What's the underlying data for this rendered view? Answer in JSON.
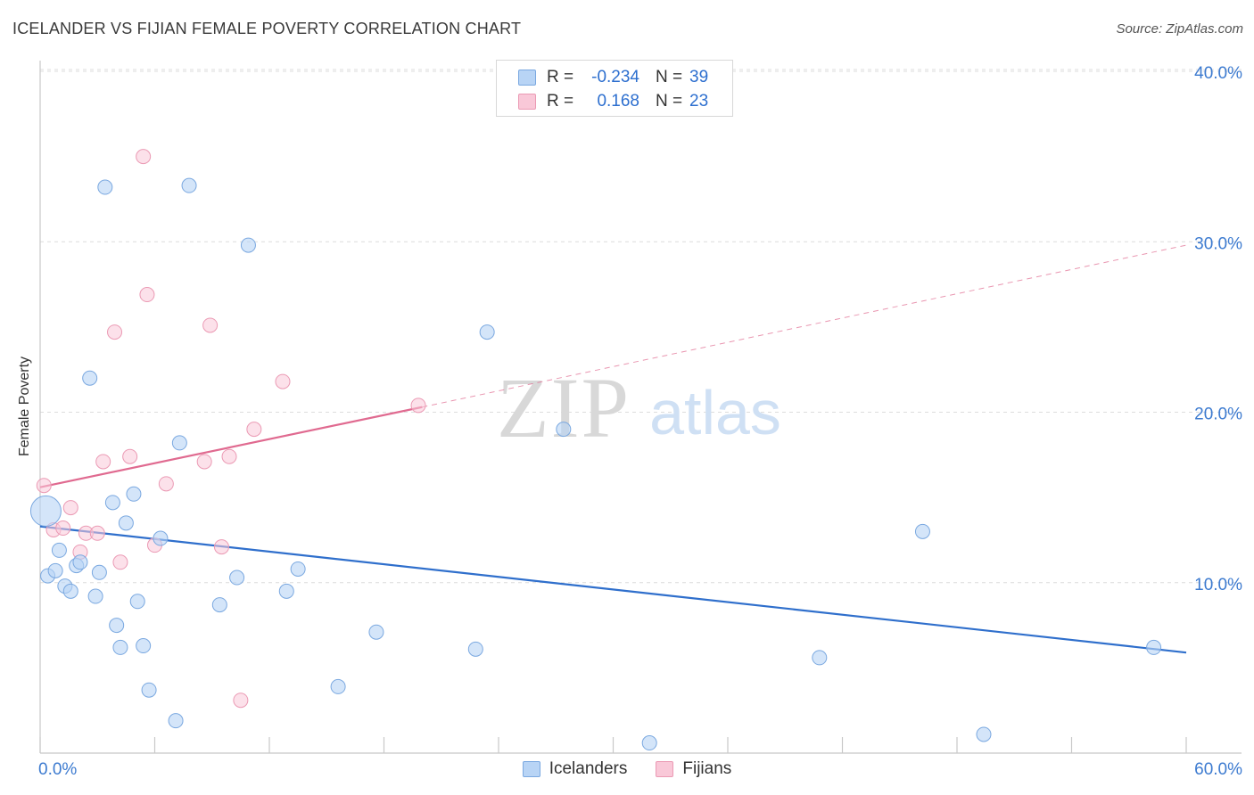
{
  "header": {
    "title": "ICELANDER VS FIJIAN FEMALE POVERTY CORRELATION CHART",
    "source": "Source: ZipAtlas.com"
  },
  "watermark": {
    "zip": "ZIP",
    "atlas": "atlas"
  },
  "legend": {
    "rows": [
      {
        "r_label": "R =",
        "r_value": "-0.234",
        "n_label": "N =",
        "n_value": "39"
      },
      {
        "r_label": "R =",
        "r_value": "0.168",
        "n_label": "N =",
        "n_value": "23"
      }
    ],
    "bottom": [
      "Icelanders",
      "Fijians"
    ]
  },
  "colors": {
    "blue_fill": "#b8d4f5",
    "blue_stroke": "#7aa8e0",
    "blue_line": "#2f6fcc",
    "pink_fill": "#f9c8d8",
    "pink_stroke": "#eb9ab4",
    "pink_line": "#e06a90",
    "tick_text": "#3d7bd0"
  },
  "chart_data": {
    "type": "scatter",
    "title": "ICELANDER VS FIJIAN FEMALE POVERTY CORRELATION CHART",
    "xlabel": "",
    "ylabel": "Female Poverty",
    "xlim": [
      0,
      60
    ],
    "ylim": [
      0,
      40
    ],
    "x_tick_labels": [
      "0.0%",
      "60.0%"
    ],
    "y_ticks": [
      10,
      20,
      30,
      40
    ],
    "y_tick_labels": [
      "10.0%",
      "20.0%",
      "30.0%",
      "40.0%"
    ],
    "series": [
      {
        "name": "Icelanders",
        "R": -0.234,
        "N": 39,
        "trend": {
          "x0": 0,
          "y0": 13.3,
          "x1": 60,
          "y1": 5.9,
          "dashed_until": null
        },
        "points": [
          [
            0.3,
            14.2,
            "big"
          ],
          [
            0.4,
            10.4
          ],
          [
            0.8,
            10.7
          ],
          [
            1.0,
            11.9
          ],
          [
            1.3,
            9.8
          ],
          [
            1.6,
            9.5
          ],
          [
            1.9,
            11.0
          ],
          [
            2.1,
            11.2
          ],
          [
            2.6,
            22.0
          ],
          [
            2.9,
            9.2
          ],
          [
            3.1,
            10.6
          ],
          [
            3.4,
            33.2
          ],
          [
            3.8,
            14.7
          ],
          [
            4.0,
            7.5
          ],
          [
            4.2,
            6.2
          ],
          [
            4.5,
            13.5
          ],
          [
            4.9,
            15.2
          ],
          [
            5.1,
            8.9
          ],
          [
            5.4,
            6.3
          ],
          [
            5.7,
            3.7
          ],
          [
            6.3,
            12.6
          ],
          [
            7.1,
            1.9
          ],
          [
            7.3,
            18.2
          ],
          [
            7.8,
            33.3
          ],
          [
            9.4,
            8.7
          ],
          [
            10.3,
            10.3
          ],
          [
            10.9,
            29.8
          ],
          [
            12.9,
            9.5
          ],
          [
            13.5,
            10.8
          ],
          [
            15.6,
            3.9
          ],
          [
            17.6,
            7.1
          ],
          [
            22.8,
            6.1
          ],
          [
            23.4,
            24.7
          ],
          [
            27.4,
            19.0
          ],
          [
            31.9,
            0.6
          ],
          [
            40.8,
            5.6
          ],
          [
            46.2,
            13.0
          ],
          [
            49.4,
            1.1
          ],
          [
            58.3,
            6.2
          ]
        ]
      },
      {
        "name": "Fijians",
        "R": 0.168,
        "N": 23,
        "trend": {
          "x0": 0,
          "y0": 15.6,
          "x1": 20,
          "y1": 20.3,
          "dashed_to_x": 60,
          "dashed_to_y": 29.8
        },
        "points": [
          [
            0.2,
            15.7
          ],
          [
            0.7,
            13.1
          ],
          [
            1.2,
            13.2
          ],
          [
            1.6,
            14.4
          ],
          [
            2.1,
            11.8
          ],
          [
            2.4,
            12.9
          ],
          [
            3.0,
            12.9
          ],
          [
            3.3,
            17.1
          ],
          [
            3.9,
            24.7
          ],
          [
            4.2,
            11.2
          ],
          [
            4.7,
            17.4
          ],
          [
            5.4,
            35.0
          ],
          [
            5.6,
            26.9
          ],
          [
            6.0,
            12.2
          ],
          [
            6.6,
            15.8
          ],
          [
            8.6,
            17.1
          ],
          [
            8.9,
            25.1
          ],
          [
            9.5,
            12.1
          ],
          [
            9.9,
            17.4
          ],
          [
            10.5,
            3.1
          ],
          [
            11.2,
            19.0
          ],
          [
            12.7,
            21.8
          ],
          [
            19.8,
            20.4
          ]
        ]
      }
    ]
  }
}
